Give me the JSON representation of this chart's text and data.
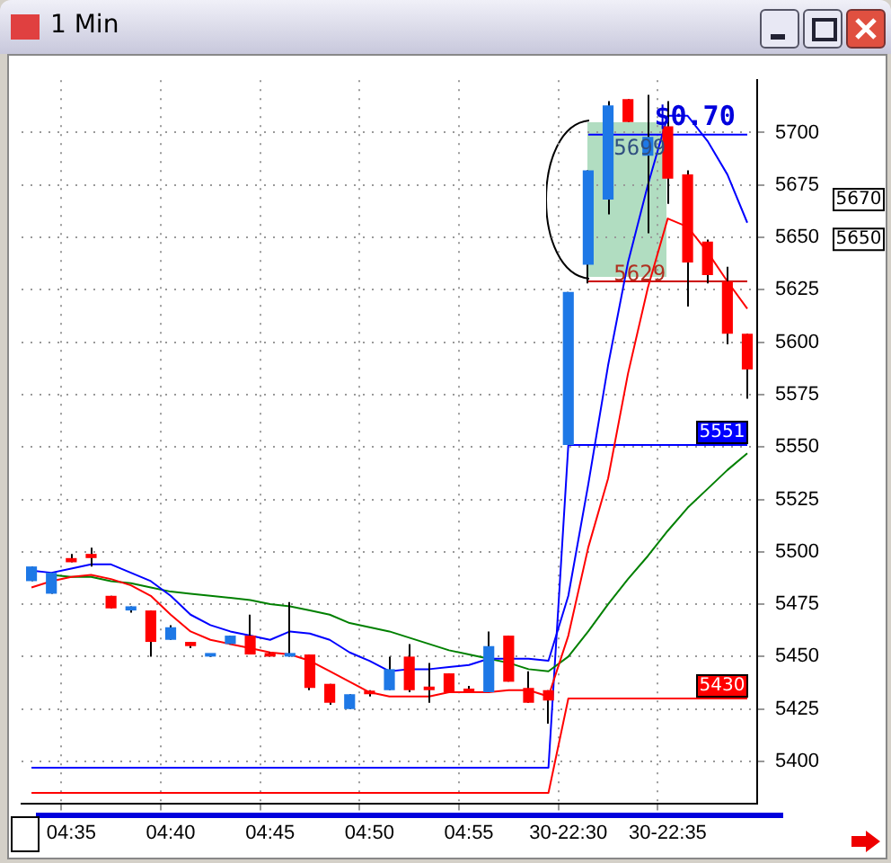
{
  "chart_data": {
    "type": "candlestick",
    "title": "1 Min",
    "categories": [
      null,
      null,
      "04:35",
      null,
      null,
      null,
      null,
      "04:40",
      null,
      null,
      null,
      null,
      "04:45",
      null,
      null,
      null,
      null,
      "04:50",
      null,
      null,
      null,
      null,
      "04:55",
      null,
      null,
      null,
      null,
      "30-22:30",
      null,
      null,
      null,
      null,
      "30-22:35",
      null,
      null,
      null,
      null
    ],
    "ohlc": [
      [
        5486,
        5493,
        5486,
        5493
      ],
      [
        5480,
        5490,
        5480,
        5490
      ],
      [
        5497,
        5499,
        5495,
        5495
      ],
      [
        5499,
        5502,
        5493,
        5497
      ],
      [
        5479,
        5479,
        5473,
        5473
      ],
      [
        5472,
        5474,
        5471,
        5474
      ],
      [
        5472,
        5472,
        5450,
        5457
      ],
      [
        5458,
        5465,
        5458,
        5464
      ],
      [
        5457,
        5457,
        5454,
        5455
      ],
      [
        5450,
        5451,
        5450,
        5451
      ],
      [
        5456,
        5460,
        5456,
        5460
      ],
      [
        5460,
        5470,
        5451,
        5451
      ],
      [
        5451,
        5452,
        5450,
        5450
      ],
      [
        5450,
        5476,
        5450,
        5451
      ],
      [
        5451,
        5451,
        5434,
        5435
      ],
      [
        5437,
        5437,
        5427,
        5428
      ],
      [
        5425,
        5432,
        5425,
        5432
      ],
      [
        5433,
        5434,
        5431,
        5432
      ],
      [
        5434,
        5450,
        5434,
        5444
      ],
      [
        5450,
        5456,
        5433,
        5434
      ],
      [
        5435,
        5447,
        5428,
        5434
      ],
      [
        5442,
        5442,
        5433,
        5433
      ],
      [
        5434,
        5436,
        5433,
        5433
      ],
      [
        5433,
        5462,
        5433,
        5455
      ],
      [
        5460,
        5460,
        5438,
        5438
      ],
      [
        5435,
        5443,
        5428,
        5428
      ],
      [
        5434,
        5434,
        5418,
        5429
      ],
      [
        5551,
        5624,
        5551,
        5624
      ],
      [
        5637,
        5682,
        5628,
        5682
      ],
      [
        5668,
        5715,
        5661,
        5713
      ],
      [
        5716,
        5716,
        5705,
        5705
      ],
      [
        5689,
        5718,
        5652,
        5698
      ],
      [
        5703,
        5715,
        5666,
        5678
      ],
      [
        5680,
        5682,
        5617,
        5638
      ],
      [
        5648,
        5649,
        5628,
        5632
      ],
      [
        5629,
        5636,
        5599,
        5604
      ],
      [
        5604,
        5604,
        5573,
        5587
      ]
    ],
    "colors": [
      "#1e78e6",
      "#1e78e6",
      "#ff0000",
      "#ff0000",
      "#ff0000",
      "#1e78e6",
      "#ff0000",
      "#1e78e6",
      "#ff0000",
      "#1e78e6",
      "#1e78e6",
      "#ff0000",
      "#ff0000",
      "#1e78e6",
      "#ff0000",
      "#ff0000",
      "#1e78e6",
      "#ff0000",
      "#1e78e6",
      "#ff0000",
      "#ff0000",
      "#ff0000",
      "#ff0000",
      "#1e78e6",
      "#ff0000",
      "#ff0000",
      "#ff0000",
      "#1e78e6",
      "#1e78e6",
      "#1e78e6",
      "#ff0000",
      "#1e78e6",
      "#ff0000",
      "#ff0000",
      "#ff0000",
      "#ff0000",
      "#ff0000"
    ],
    "series": [
      {
        "type": "line",
        "color": "#0000ff",
        "values": [
          5491,
          5490,
          5492,
          5494,
          5494,
          5490,
          5486,
          5479,
          5470,
          5465,
          5462,
          5460,
          5458,
          5462,
          5461,
          5458,
          5452,
          5448,
          5443,
          5444,
          5444,
          5445,
          5446,
          5449,
          5449,
          5449,
          5448,
          5479,
          5532,
          5589,
          5638,
          5675,
          5708,
          5708,
          5696,
          5680,
          5657
        ]
      },
      {
        "type": "line",
        "color": "#ff0000",
        "values": [
          5483,
          5486,
          5488,
          5489,
          5487,
          5484,
          5479,
          5470,
          5462,
          5458,
          5456,
          5454,
          5452,
          5451,
          5448,
          5443,
          5438,
          5433,
          5431,
          5431,
          5431,
          5433,
          5433,
          5433,
          5434,
          5434,
          5431,
          5460,
          5502,
          5535,
          5585,
          5626,
          5659,
          5655,
          5643,
          5629,
          5616
        ]
      },
      {
        "type": "line",
        "color": "#008000",
        "values": [
          null,
          5489,
          5488,
          5488,
          5486,
          5485,
          5483,
          5481,
          5480,
          5479,
          5478,
          5477,
          5475,
          5474,
          5472,
          5470,
          5466,
          5464,
          5462,
          5459,
          5456,
          5453,
          5451,
          5449,
          5447,
          5444,
          5443,
          5450,
          5462,
          5475,
          5487,
          5498,
          5510,
          5521,
          5530,
          5539,
          5547
        ]
      },
      {
        "type": "line",
        "color": "#0000ff",
        "values": [
          5397,
          5397,
          5397,
          5397,
          5397,
          5397,
          5397,
          5397,
          5397,
          5397,
          5397,
          5397,
          5397,
          5397,
          5397,
          5397,
          5397,
          5397,
          5397,
          5397,
          5397,
          5397,
          5397,
          5397,
          5397,
          5397,
          5397,
          5551,
          5551,
          5551,
          5551,
          5551,
          5551,
          5551,
          5551,
          5551,
          5551
        ],
        "value_labels": [
          null,
          null,
          null,
          null,
          null,
          null,
          null,
          null,
          null,
          null,
          null,
          null,
          null,
          null,
          null,
          null,
          null,
          null,
          null,
          null,
          null,
          null,
          null,
          null,
          null,
          null,
          null,
          null,
          null,
          null,
          null,
          null,
          null,
          null,
          null,
          null,
          "5551"
        ]
      },
      {
        "type": "line",
        "color": "#ff0000",
        "values": [
          5385,
          5385,
          5385,
          5385,
          5385,
          5385,
          5385,
          5385,
          5385,
          5385,
          5385,
          5385,
          5385,
          5385,
          5385,
          5385,
          5385,
          5385,
          5385,
          5385,
          5385,
          5385,
          5385,
          5385,
          5385,
          5385,
          5385,
          5430,
          5430,
          5430,
          5430,
          5430,
          5430,
          5430,
          5430,
          5430,
          5430
        ],
        "value_labels": [
          null,
          null,
          null,
          null,
          null,
          null,
          null,
          null,
          null,
          null,
          null,
          null,
          null,
          null,
          null,
          null,
          null,
          null,
          null,
          null,
          null,
          null,
          null,
          null,
          null,
          null,
          null,
          null,
          null,
          null,
          null,
          null,
          null,
          null,
          null,
          null,
          "5430"
        ]
      },
      {
        "type": "line",
        "color": "#0000ff",
        "values": [
          null,
          null,
          null,
          null,
          null,
          null,
          null,
          null,
          null,
          null,
          null,
          null,
          null,
          null,
          null,
          null,
          null,
          null,
          null,
          null,
          null,
          null,
          null,
          null,
          null,
          null,
          null,
          null,
          5699,
          5699,
          5699,
          5699,
          5699,
          5699,
          5699,
          5699,
          5699
        ]
      },
      {
        "type": "line",
        "color": "#cc0000",
        "values": [
          null,
          null,
          null,
          null,
          null,
          null,
          null,
          null,
          null,
          null,
          null,
          null,
          null,
          null,
          null,
          null,
          null,
          null,
          null,
          null,
          null,
          null,
          null,
          null,
          null,
          null,
          null,
          null,
          5629,
          5629,
          5629,
          5629,
          5629,
          5629,
          5629,
          5629,
          5629
        ]
      }
    ],
    "ylim": [
      5380,
      5725
    ],
    "yticks": [
      5400,
      5425,
      5450,
      5475,
      5500,
      5525,
      5550,
      5575,
      5600,
      5625,
      5650,
      5675,
      5700
    ],
    "grid": true,
    "legend": false,
    "marker": "none",
    "line_style": "solid",
    "annotations": [
      {
        "text": "$0.70",
        "y": 5707
      },
      {
        "text": "5699",
        "y": 5692
      },
      {
        "text": "5629",
        "y": 5632
      },
      "5670",
      "5650"
    ]
  }
}
